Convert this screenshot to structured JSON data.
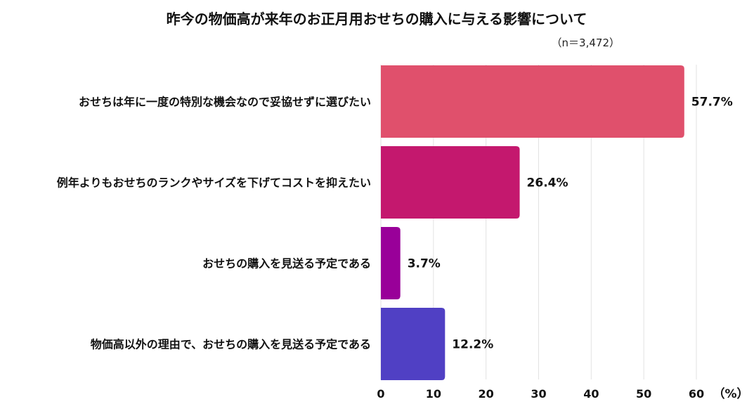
{
  "chart_data": {
    "type": "bar",
    "orientation": "horizontal",
    "title": "昨今の物価高が来年のお正月用おせちの購入に与える影響について",
    "sample_size": "（n＝3,472）",
    "categories": [
      "おせちは年に一度の特別な機会なので妥協せずに選びたい",
      "例年よりもおせちのランクやサイズを下げてコストを抑えたい",
      "おせちの購入を見送る予定である",
      "物価高以外の理由で、おせちの購入を見送る予定である"
    ],
    "values": [
      57.7,
      26.4,
      3.7,
      12.2
    ],
    "value_labels": [
      "57.7%",
      "26.4%",
      "3.7%",
      "12.2%"
    ],
    "colors": [
      "#e0506c",
      "#c4186e",
      "#990099",
      "#5040c4"
    ],
    "xlim": [
      0,
      60
    ],
    "xticks": [
      0,
      10,
      20,
      30,
      40,
      50,
      60
    ],
    "unit_label": "（%）",
    "grid": true
  }
}
